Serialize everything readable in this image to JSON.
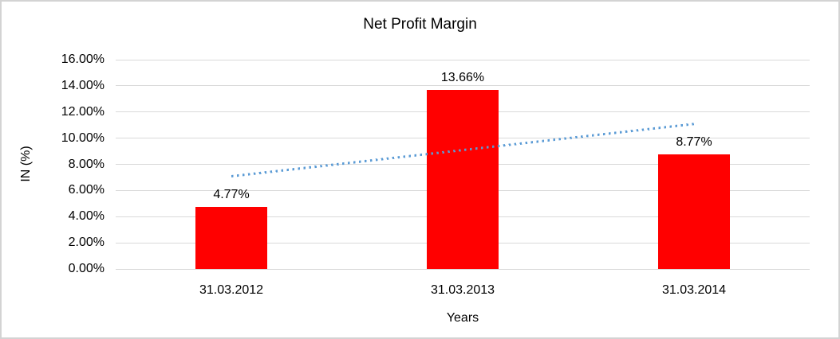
{
  "chart_data": {
    "type": "bar",
    "title": "Net Profit Margin",
    "xlabel": "Years",
    "ylabel": "IN (%)",
    "categories": [
      "31.03.2012",
      "31.03.2013",
      "31.03.2014"
    ],
    "values": [
      4.77,
      13.66,
      8.77
    ],
    "data_labels": [
      "4.77%",
      "13.66%",
      "8.77%"
    ],
    "ylim": [
      0,
      16
    ],
    "ytick_step": 2,
    "ytick_labels": [
      "0.00%",
      "2.00%",
      "4.00%",
      "6.00%",
      "8.00%",
      "10.00%",
      "12.00%",
      "14.00%",
      "16.00%"
    ],
    "grid": true,
    "legend": "none",
    "bar_color": "#ff0000",
    "gridline_color": "#d9d9d9",
    "frame_color": "#d3d3d3",
    "trendline": {
      "type": "linear",
      "style": "dotted",
      "color": "#5b9bd5",
      "start_value": 7.07,
      "end_value": 11.07
    }
  }
}
